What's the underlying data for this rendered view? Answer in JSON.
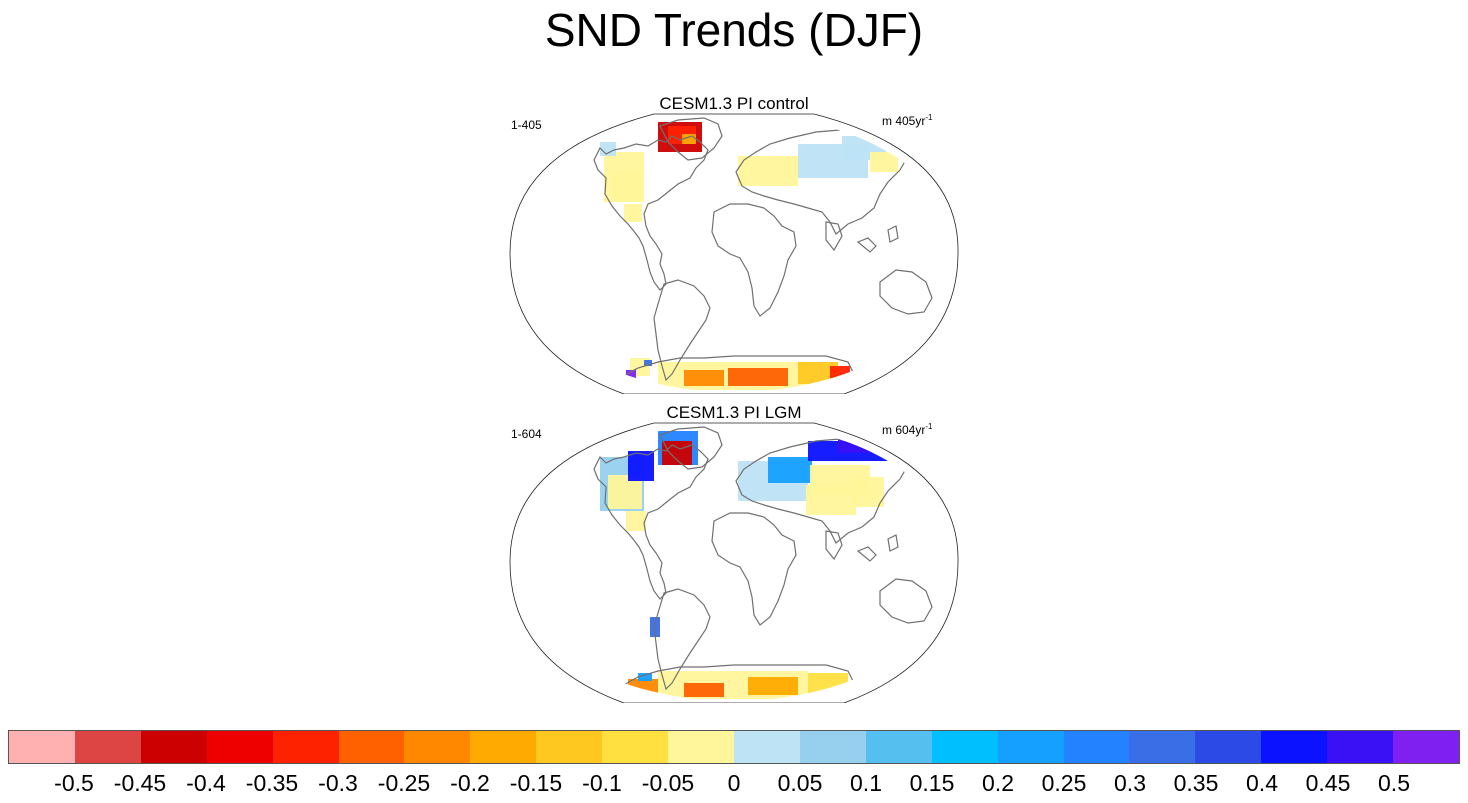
{
  "title": "SND Trends (DJF)",
  "panels": [
    {
      "title": "CESM1.3 PI control",
      "left_label": "1-405",
      "right_label": "m 405yr",
      "right_label_sup": "-1"
    },
    {
      "title": "CESM1.3 PI LGM",
      "left_label": "1-604",
      "right_label": "m 604yr",
      "right_label_sup": "-1"
    }
  ],
  "colorbar": {
    "colors": [
      "#ffb0b0",
      "#dd4444",
      "#cc0000",
      "#ee0000",
      "#ff2200",
      "#ff6000",
      "#ff8800",
      "#ffaa00",
      "#ffc820",
      "#ffe040",
      "#fff59a",
      "#bde3f5",
      "#96d0ee",
      "#55c0f0",
      "#00bfff",
      "#15a0ff",
      "#2382ff",
      "#3a6ee6",
      "#2c4ae6",
      "#0a12ff",
      "#3a10f5",
      "#8020f0"
    ],
    "labels": [
      "-0.5",
      "-0.45",
      "-0.4",
      "-0.35",
      "-0.3",
      "-0.25",
      "-0.2",
      "-0.15",
      "-0.1",
      "-0.05",
      "0",
      "0.05",
      "0.1",
      "0.15",
      "0.2",
      "0.25",
      "0.3",
      "0.35",
      "0.4",
      "0.45",
      "0.5"
    ]
  },
  "map_style": {
    "coast_color": "#707070",
    "border_color": "#222222"
  }
}
